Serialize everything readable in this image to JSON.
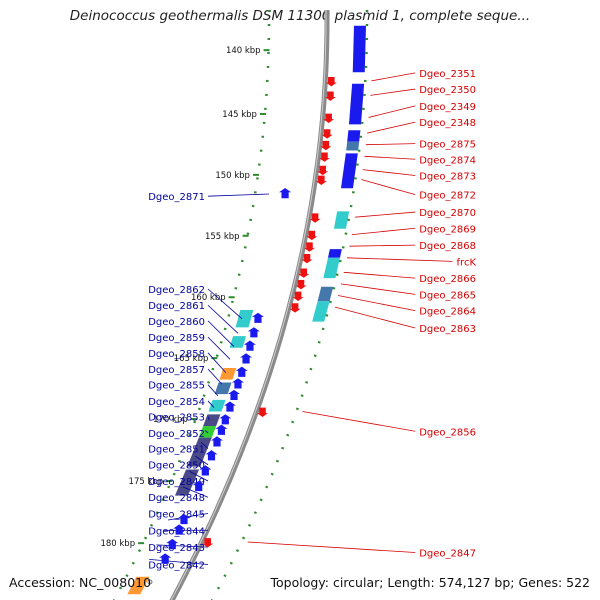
{
  "title": "Deinococcus geothermalis DSM 11300 plasmid 1, complete seque...",
  "footer": {
    "accession": "Accession: NC_008010",
    "topology": "Topology: circular; Length: 574,127 bp; Genes: 522"
  },
  "colors": {
    "label_left": "#00009c",
    "label_right": "#d40000",
    "ruler": "#2e8b2e",
    "backbone": "#8a8a8a",
    "gene_blue": "#1a1aee",
    "gene_red": "#ee1111",
    "cyan": "#33cccc",
    "steel": "#4477aa",
    "orange": "#ff9933",
    "green": "#33cc33",
    "purple": "#4a4a88"
  },
  "ruler_labels": [
    {
      "text": "140 kbp",
      "t": 0.052
    },
    {
      "text": "145 kbp",
      "t": 0.162
    },
    {
      "text": "150 kbp",
      "t": 0.267
    },
    {
      "text": "155 kbp",
      "t": 0.372
    },
    {
      "text": "160 kbp",
      "t": 0.478
    },
    {
      "text": "165 kbp",
      "t": 0.583
    },
    {
      "text": "170 kbp",
      "t": 0.688
    },
    {
      "text": "175 kbp",
      "t": 0.795
    },
    {
      "text": "180 kbp",
      "t": 0.902
    }
  ],
  "left_genes": [
    {
      "label": "Dgeo_2871",
      "label_t": 0.29,
      "gene_t": 0.3
    },
    {
      "label": "Dgeo_2862",
      "label_t": 0.45,
      "gene_t": 0.515
    },
    {
      "label": "Dgeo_2861",
      "label_t": 0.478,
      "gene_t": 0.54
    },
    {
      "label": "Dgeo_2860",
      "label_t": 0.505,
      "gene_t": 0.563
    },
    {
      "label": "Dgeo_2859",
      "label_t": 0.533,
      "gene_t": 0.585
    },
    {
      "label": "Dgeo_2858",
      "label_t": 0.56,
      "gene_t": 0.608
    },
    {
      "label": "Dgeo_2857",
      "label_t": 0.588,
      "gene_t": 0.628
    },
    {
      "label": "Dgeo_2855",
      "label_t": 0.615,
      "gene_t": 0.648
    },
    {
      "label": "Dgeo_2854",
      "label_t": 0.643,
      "gene_t": 0.668
    },
    {
      "label": "Dgeo_2853",
      "label_t": 0.67,
      "gene_t": 0.69
    },
    {
      "label": "Dgeo_2852",
      "label_t": 0.698,
      "gene_t": 0.708
    },
    {
      "label": "Dgeo_2851",
      "label_t": 0.725,
      "gene_t": 0.728
    },
    {
      "label": "Dgeo_2850",
      "label_t": 0.753,
      "gene_t": 0.752
    },
    {
      "label": "Dgeo_2849",
      "label_t": 0.781,
      "gene_t": 0.778
    },
    {
      "label": "Dgeo_2848",
      "label_t": 0.809,
      "gene_t": 0.805
    },
    {
      "label": "Dgeo_2845",
      "label_t": 0.837,
      "gene_t": 0.862
    },
    {
      "label": "Dgeo_2844",
      "label_t": 0.866,
      "gene_t": 0.88
    },
    {
      "label": "Dgeo_2843",
      "label_t": 0.895,
      "gene_t": 0.905
    },
    {
      "label": "Dgeo_2842",
      "label_t": 0.925,
      "gene_t": 0.93
    }
  ],
  "right_genes": [
    {
      "label": "Dgeo_2351",
      "label_t": 0.098,
      "gene_t": 0.105
    },
    {
      "label": "Dgeo_2350",
      "label_t": 0.126,
      "gene_t": 0.13
    },
    {
      "label": "Dgeo_2349",
      "label_t": 0.155,
      "gene_t": 0.168
    },
    {
      "label": "Dgeo_2348",
      "label_t": 0.183,
      "gene_t": 0.195
    },
    {
      "label": "Dgeo_2875",
      "label_t": 0.22,
      "gene_t": 0.215
    },
    {
      "label": "Dgeo_2874",
      "label_t": 0.247,
      "gene_t": 0.235
    },
    {
      "label": "Dgeo_2873",
      "label_t": 0.275,
      "gene_t": 0.258
    },
    {
      "label": "Dgeo_2872",
      "label_t": 0.308,
      "gene_t": 0.275
    },
    {
      "label": "Dgeo_2870",
      "label_t": 0.338,
      "gene_t": 0.34
    },
    {
      "label": "Dgeo_2869",
      "label_t": 0.366,
      "gene_t": 0.37
    },
    {
      "label": "Dgeo_2868",
      "label_t": 0.395,
      "gene_t": 0.39
    },
    {
      "label": "frcK",
      "label_t": 0.423,
      "gene_t": 0.41
    },
    {
      "label": "Dgeo_2866",
      "label_t": 0.452,
      "gene_t": 0.435
    },
    {
      "label": "Dgeo_2865",
      "label_t": 0.48,
      "gene_t": 0.455
    },
    {
      "label": "Dgeo_2864",
      "label_t": 0.508,
      "gene_t": 0.475
    },
    {
      "label": "Dgeo_2863",
      "label_t": 0.538,
      "gene_t": 0.495
    },
    {
      "label": "Dgeo_2856",
      "label_t": 0.716,
      "gene_t": 0.675
    },
    {
      "label": "Dgeo_2847",
      "label_t": 0.925,
      "gene_t": 0.9
    }
  ],
  "feature_blocks": [
    {
      "track": "outer",
      "t0": 0.01,
      "t1": 0.09,
      "fill": "gene_blue"
    },
    {
      "track": "outer",
      "t0": 0.11,
      "t1": 0.18,
      "fill": "gene_blue"
    },
    {
      "track": "outer",
      "t0": 0.19,
      "t1": 0.21,
      "fill": "gene_blue"
    },
    {
      "track": "outer",
      "t0": 0.21,
      "t1": 0.225,
      "fill": "steel"
    },
    {
      "track": "outer",
      "t0": 0.23,
      "t1": 0.29,
      "fill": "gene_blue"
    },
    {
      "track": "outer",
      "t0": 0.33,
      "t1": 0.36,
      "fill": "cyan"
    },
    {
      "track": "outer",
      "t0": 0.395,
      "t1": 0.41,
      "fill": "gene_blue"
    },
    {
      "track": "outer",
      "t0": 0.41,
      "t1": 0.445,
      "fill": "cyan"
    },
    {
      "track": "outer",
      "t0": 0.46,
      "t1": 0.485,
      "fill": "steel"
    },
    {
      "track": "outer",
      "t0": 0.485,
      "t1": 0.52,
      "fill": "cyan"
    },
    {
      "track": "inner_l",
      "t0": 0.5,
      "t1": 0.53,
      "fill": "cyan"
    },
    {
      "track": "inner_l",
      "t0": 0.545,
      "t1": 0.565,
      "fill": "cyan"
    },
    {
      "track": "inner_l",
      "t0": 0.6,
      "t1": 0.62,
      "fill": "orange"
    },
    {
      "track": "inner_l",
      "t0": 0.625,
      "t1": 0.645,
      "fill": "steel"
    },
    {
      "track": "inner_l",
      "t0": 0.655,
      "t1": 0.675,
      "fill": "cyan"
    },
    {
      "track": "inner_l",
      "t0": 0.68,
      "t1": 0.7,
      "fill": "purple"
    },
    {
      "track": "inner_l",
      "t0": 0.7,
      "t1": 0.72,
      "fill": "green"
    },
    {
      "track": "inner_l",
      "t0": 0.72,
      "t1": 0.77,
      "fill": "purple"
    },
    {
      "track": "inner_l",
      "t0": 0.775,
      "t1": 0.82,
      "fill": "purple"
    },
    {
      "track": "inner_l",
      "t0": 0.96,
      "t1": 0.99,
      "fill": "orange"
    }
  ]
}
